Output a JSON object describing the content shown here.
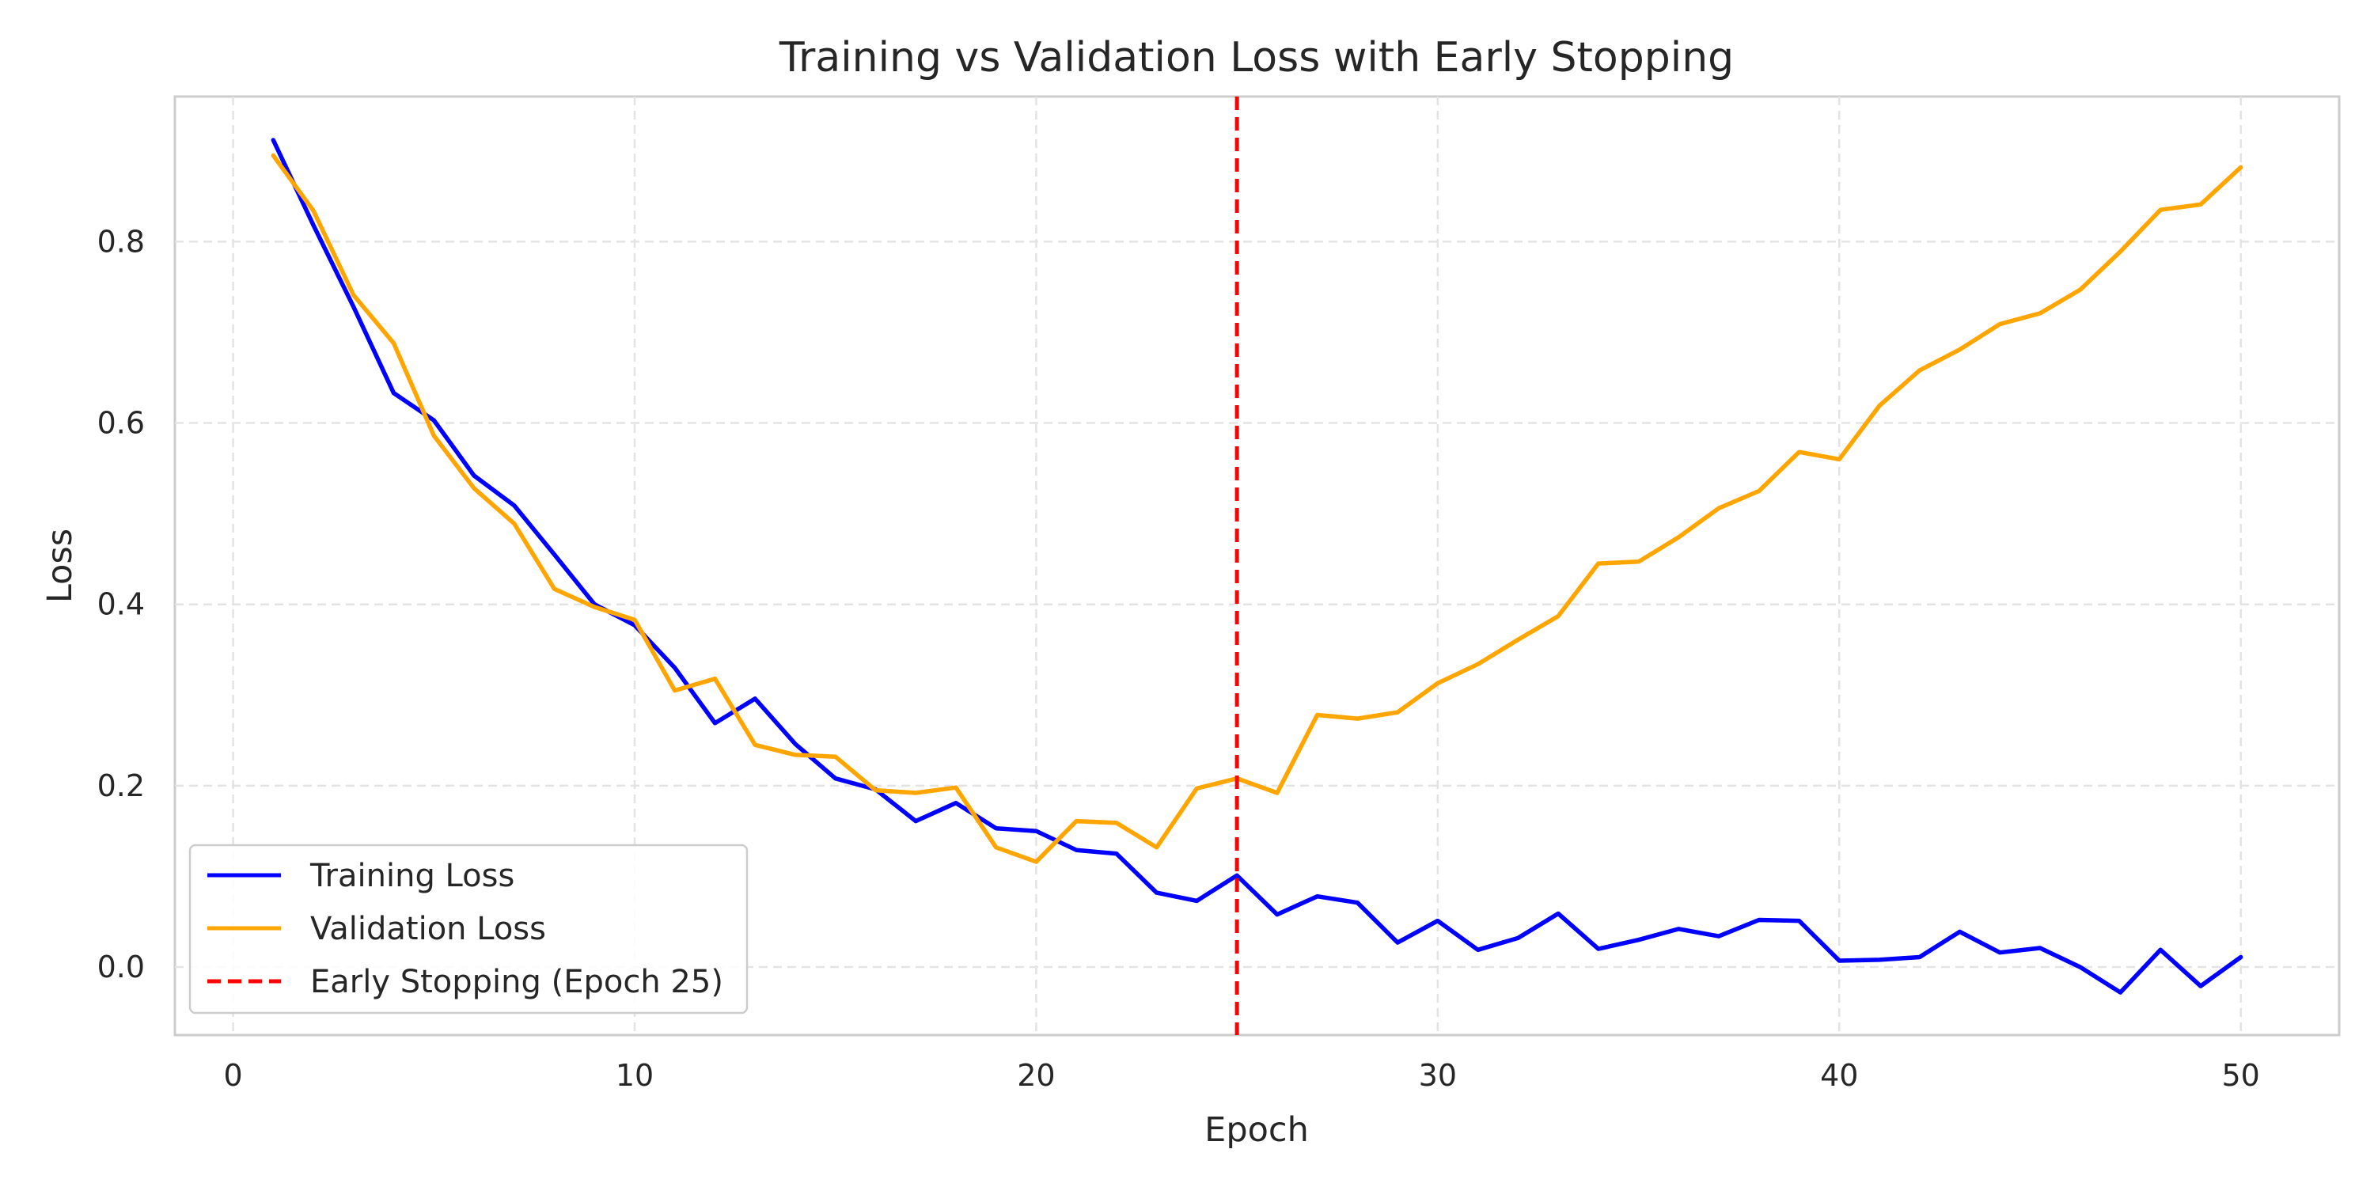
{
  "chart_data": {
    "type": "line",
    "title": "Training vs Validation Loss with Early Stopping",
    "xlabel": "Epoch",
    "ylabel": "Loss",
    "xlim": [
      -1.45,
      52.45
    ],
    "ylim": [
      -0.075,
      0.96
    ],
    "xticks": [
      0,
      10,
      20,
      30,
      40,
      50
    ],
    "xtick_labels": [
      "0",
      "10",
      "20",
      "30",
      "40",
      "50"
    ],
    "yticks": [
      0.0,
      0.2,
      0.4,
      0.6,
      0.8
    ],
    "ytick_labels": [
      "0.0",
      "0.2",
      "0.4",
      "0.6",
      "0.8"
    ],
    "grid": true,
    "legend_position": "bottom-left",
    "x": [
      1,
      2,
      3,
      4,
      5,
      6,
      7,
      8,
      9,
      10,
      11,
      12,
      13,
      14,
      15,
      16,
      17,
      18,
      19,
      20,
      21,
      22,
      23,
      24,
      25,
      26,
      27,
      28,
      29,
      30,
      31,
      32,
      33,
      34,
      35,
      36,
      37,
      38,
      39,
      40,
      41,
      42,
      43,
      44,
      45,
      46,
      47,
      48,
      49,
      50
    ],
    "series": [
      {
        "name": "Training Loss",
        "color": "#0000ff",
        "style": "solid",
        "values": [
          0.912,
          0.818,
          0.728,
          0.633,
          0.603,
          0.542,
          0.509,
          0.455,
          0.4,
          0.377,
          0.33,
          0.269,
          0.296,
          0.246,
          0.208,
          0.196,
          0.161,
          0.181,
          0.153,
          0.15,
          0.129,
          0.125,
          0.082,
          0.073,
          0.101,
          0.058,
          0.078,
          0.071,
          0.027,
          0.051,
          0.019,
          0.032,
          0.059,
          0.02,
          0.03,
          0.042,
          0.034,
          0.052,
          0.051,
          0.007,
          0.008,
          0.011,
          0.039,
          0.016,
          0.021,
          0.0,
          -0.028,
          0.019,
          -0.021,
          0.011
        ]
      },
      {
        "name": "Validation Loss",
        "color": "#ffa500",
        "style": "solid",
        "values": [
          0.895,
          0.834,
          0.741,
          0.688,
          0.586,
          0.528,
          0.489,
          0.417,
          0.397,
          0.383,
          0.305,
          0.318,
          0.245,
          0.234,
          0.232,
          0.195,
          0.192,
          0.198,
          0.132,
          0.116,
          0.161,
          0.159,
          0.132,
          0.197,
          0.208,
          0.192,
          0.278,
          0.274,
          0.281,
          0.313,
          0.334,
          0.361,
          0.387,
          0.445,
          0.447,
          0.474,
          0.506,
          0.525,
          0.568,
          0.56,
          0.619,
          0.658,
          0.681,
          0.709,
          0.721,
          0.747,
          0.789,
          0.835,
          0.841,
          0.882
        ]
      }
    ],
    "annotations": [
      {
        "type": "vline",
        "x": 25,
        "label": "Early Stopping (Epoch 25)",
        "color": "#ff0000",
        "style": "dashed"
      }
    ]
  }
}
